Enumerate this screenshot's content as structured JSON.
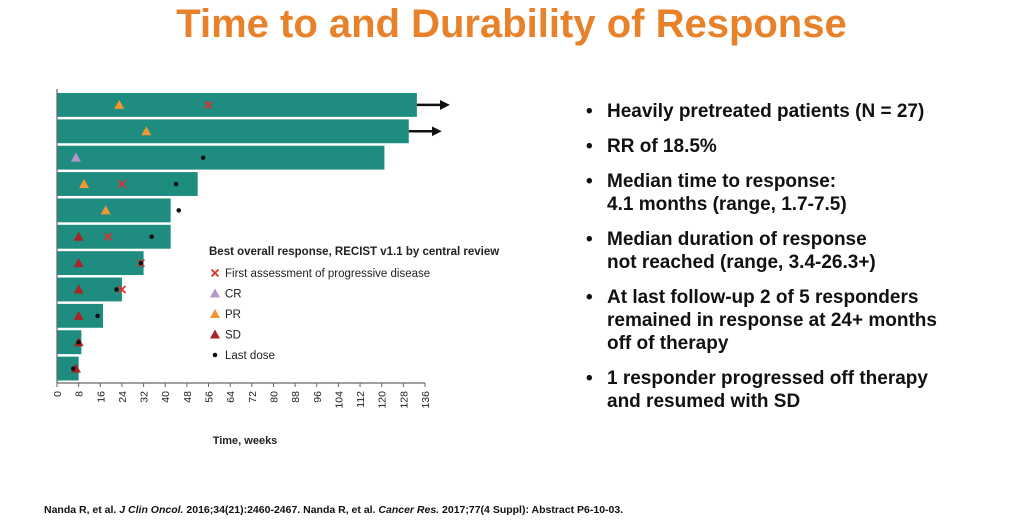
{
  "slide": {
    "title": "Time to and Durability of Response",
    "bullets": [
      {
        "lines": [
          "Heavily pretreated patients (N = 27)"
        ]
      },
      {
        "lines": [
          "RR of 18.5%"
        ]
      },
      {
        "lines": [
          "Median time to response:",
          "4.1 months (range, 1.7-7.5)"
        ]
      },
      {
        "lines": [
          "Median duration of response",
          "not reached (range, 3.4-26.3+)"
        ]
      },
      {
        "lines": [
          "At last follow-up 2 of 5 responders",
          "remained in response at 24+ months",
          "off of therapy"
        ]
      },
      {
        "lines": [
          "1 responder progressed off therapy",
          "and resumed with SD"
        ]
      }
    ],
    "citation": {
      "part1": "Nanda R, et al. ",
      "journal1": "J Clin Oncol.",
      "part2": " 2016;34(21):2460-2467. Nanda R, et al. ",
      "journal2": "Cancer Res.",
      "part3": " 2017;77(4 Suppl): Abstract P6-10-03."
    }
  },
  "chart_data": {
    "type": "bar",
    "orientation": "horizontal",
    "xlabel": "Time, weeks",
    "xlim": [
      0,
      136
    ],
    "xticks": [
      0,
      8,
      16,
      24,
      32,
      40,
      48,
      56,
      64,
      72,
      80,
      88,
      96,
      104,
      112,
      120,
      128,
      136
    ],
    "legend_title": "Best overall response, RECIST v1.1 by central review",
    "legend": [
      {
        "key": "pd",
        "label": "First assessment of progressive disease",
        "marker": "x",
        "color": "#d9332a"
      },
      {
        "key": "cr",
        "label": "CR",
        "marker": "triangle",
        "color": "#b596c8"
      },
      {
        "key": "pr",
        "label": "PR",
        "marker": "triangle",
        "color": "#f0982f"
      },
      {
        "key": "sd",
        "label": "SD",
        "marker": "triangle",
        "color": "#a82525"
      },
      {
        "key": "last",
        "label": "Last dose",
        "marker": "dot",
        "color": "#111111"
      }
    ],
    "bar_color": "#1f8c80",
    "patients": [
      {
        "duration": 133,
        "ongoing": true,
        "response": "pr",
        "response_week": 23,
        "pd_week": 56
      },
      {
        "duration": 130,
        "ongoing": true,
        "response": "pr",
        "response_week": 33
      },
      {
        "duration": 121,
        "response": "cr",
        "response_week": 7,
        "last_dose_week": 54
      },
      {
        "duration": 52,
        "response": "pr",
        "response_week": 10,
        "pd_week": 24,
        "last_dose_week": 44
      },
      {
        "duration": 42,
        "response": "pr",
        "response_week": 18,
        "last_dose_week": 45
      },
      {
        "duration": 42,
        "response": "sd",
        "response_week": 8,
        "pd_week": 19,
        "last_dose_week": 35
      },
      {
        "duration": 32,
        "response": "sd",
        "response_week": 8,
        "pd_week": 31,
        "last_dose_week": 31
      },
      {
        "duration": 24,
        "response": "sd",
        "response_week": 8,
        "pd_week": 24,
        "last_dose_week": 22
      },
      {
        "duration": 17,
        "response": "sd",
        "response_week": 8,
        "last_dose_week": 15
      },
      {
        "duration": 9,
        "response": "sd",
        "response_week": 8,
        "last_dose_week": 8
      },
      {
        "duration": 8,
        "response": "sd",
        "response_week": 7,
        "last_dose_week": 6
      }
    ]
  }
}
